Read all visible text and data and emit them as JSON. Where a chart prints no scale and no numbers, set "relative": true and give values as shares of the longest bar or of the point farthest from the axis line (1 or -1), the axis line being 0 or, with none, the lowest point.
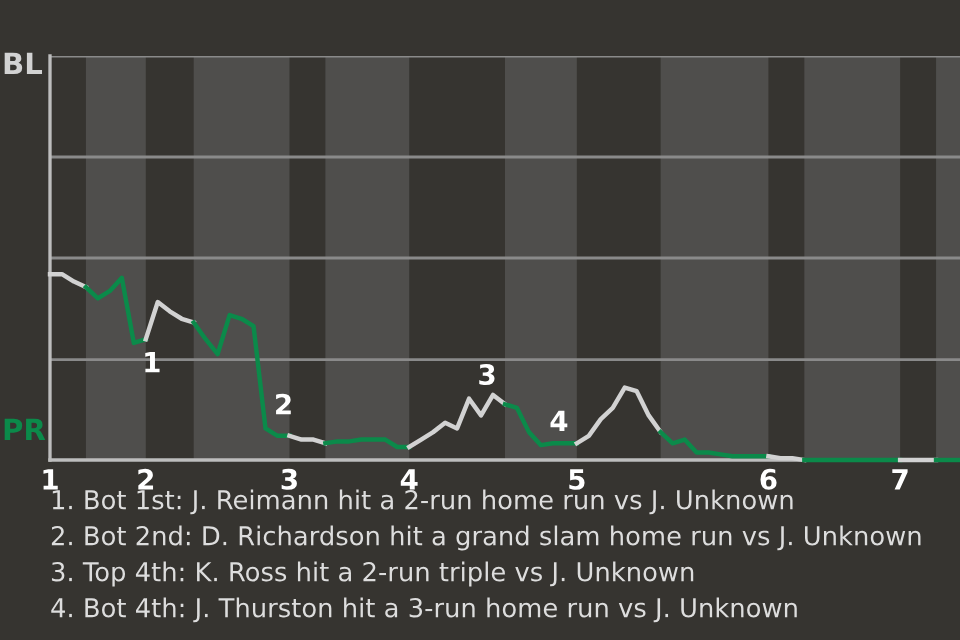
{
  "chart_data": {
    "type": "line",
    "relative": true,
    "categories": [
      "1",
      null,
      null,
      null,
      null,
      null,
      null,
      null,
      "2",
      null,
      null,
      null,
      null,
      null,
      null,
      null,
      null,
      null,
      null,
      null,
      "3",
      null,
      null,
      null,
      null,
      null,
      null,
      null,
      null,
      null,
      "4",
      null,
      null,
      null,
      null,
      null,
      null,
      null,
      null,
      null,
      null,
      null,
      null,
      null,
      "5",
      null,
      null,
      null,
      null,
      null,
      null,
      null,
      null,
      null,
      null,
      null,
      null,
      null,
      null,
      null,
      "6",
      null,
      null,
      null,
      null,
      null,
      null,
      null,
      null,
      null,
      null,
      "7",
      null,
      null,
      null,
      null,
      null
    ],
    "ref_lines": [
      {
        "axis": "y",
        "value": 0.54,
        "color": "#8a8a8a"
      }
    ],
    "marker": "none",
    "line_style": "solid",
    "series": [
      {
        "color": "#d2d2d2",
        "values": [
          1,
          1,
          0.96,
          0.93,
          null,
          null,
          null,
          null,
          null,
          null,
          null,
          null,
          null,
          null,
          null,
          null,
          null,
          null,
          null,
          null,
          null,
          null,
          null,
          null,
          null,
          null,
          null,
          null,
          null,
          null,
          null,
          null,
          null,
          null,
          null,
          null,
          null,
          null,
          null,
          null,
          null,
          null,
          null,
          null,
          null,
          null,
          null,
          null,
          null,
          null,
          null,
          null,
          null,
          null,
          null,
          null,
          null,
          null,
          null,
          null,
          null,
          null,
          null,
          null,
          null,
          null,
          null,
          null,
          null,
          null,
          null,
          null,
          null,
          null,
          null,
          null,
          null
        ]
      },
      {
        "color": "#0b8a4a",
        "values": [
          null,
          null,
          null,
          0.93,
          0.87,
          0.91,
          0.98,
          0.63,
          0.65,
          null,
          null,
          null,
          null,
          null,
          null,
          null,
          null,
          null,
          null,
          null,
          null,
          null,
          null,
          null,
          null,
          null,
          null,
          null,
          null,
          null,
          null,
          null,
          null,
          null,
          null,
          null,
          null,
          null,
          null,
          null,
          null,
          null,
          null,
          null,
          null,
          null,
          null,
          null,
          null,
          null,
          null,
          null,
          null,
          null,
          null,
          null,
          null,
          null,
          null,
          null,
          null,
          null,
          null,
          null,
          null,
          null,
          null,
          null,
          null,
          null,
          null,
          null,
          null,
          null,
          null,
          null,
          null
        ]
      },
      {
        "color": "#d2d2d2",
        "values": [
          null,
          null,
          null,
          null,
          null,
          null,
          null,
          null,
          0.65,
          0.85,
          0.8,
          0.76,
          0.74,
          null,
          null,
          null,
          null,
          null,
          null,
          null,
          null,
          null,
          null,
          null,
          null,
          null,
          null,
          null,
          null,
          null,
          null,
          null,
          null,
          null,
          null,
          null,
          null,
          null,
          null,
          null,
          null,
          null,
          null,
          null,
          null,
          null,
          null,
          null,
          null,
          null,
          null,
          null,
          null,
          null,
          null,
          null,
          null,
          null,
          null,
          null,
          null,
          null,
          null,
          null,
          null,
          null,
          null,
          null,
          null,
          null,
          null,
          null,
          null,
          null,
          null,
          null,
          null
        ]
      },
      {
        "color": "#0b8a4a",
        "values": [
          null,
          null,
          null,
          null,
          null,
          null,
          null,
          null,
          null,
          null,
          null,
          null,
          0.74,
          0.65,
          0.57,
          0.78,
          0.76,
          0.72,
          0.17,
          0.13,
          0.13,
          null,
          null,
          null,
          null,
          null,
          null,
          null,
          null,
          null,
          null,
          null,
          null,
          null,
          null,
          null,
          null,
          null,
          null,
          null,
          null,
          null,
          null,
          null,
          null,
          null,
          null,
          null,
          null,
          null,
          null,
          null,
          null,
          null,
          null,
          null,
          null,
          null,
          null,
          null,
          null,
          null,
          null,
          null,
          null,
          null,
          null,
          null,
          null,
          null,
          null,
          null,
          null,
          null,
          null,
          null,
          null
        ]
      },
      {
        "color": "#d2d2d2",
        "values": [
          null,
          null,
          null,
          null,
          null,
          null,
          null,
          null,
          null,
          null,
          null,
          null,
          null,
          null,
          null,
          null,
          null,
          null,
          null,
          null,
          0.13,
          0.11,
          0.11,
          0.09,
          null,
          null,
          null,
          null,
          null,
          null,
          null,
          null,
          null,
          null,
          null,
          null,
          null,
          null,
          null,
          null,
          null,
          null,
          null,
          null,
          null,
          null,
          null,
          null,
          null,
          null,
          null,
          null,
          null,
          null,
          null,
          null,
          null,
          null,
          null,
          null,
          null,
          null,
          null,
          null,
          null,
          null,
          null,
          null,
          null,
          null,
          null,
          null,
          null,
          null,
          null,
          null,
          null
        ]
      },
      {
        "color": "#0b8a4a",
        "values": [
          null,
          null,
          null,
          null,
          null,
          null,
          null,
          null,
          null,
          null,
          null,
          null,
          null,
          null,
          null,
          null,
          null,
          null,
          null,
          null,
          null,
          null,
          null,
          0.09,
          0.1,
          0.1,
          0.11,
          0.11,
          0.11,
          0.07,
          0.07,
          null,
          null,
          null,
          null,
          null,
          null,
          null,
          null,
          null,
          null,
          null,
          null,
          null,
          null,
          null,
          null,
          null,
          null,
          null,
          null,
          null,
          null,
          null,
          null,
          null,
          null,
          null,
          null,
          null,
          null,
          null,
          null,
          null,
          null,
          null,
          null,
          null,
          null,
          null,
          null,
          null,
          null,
          null,
          null,
          null,
          null
        ]
      },
      {
        "color": "#d2d2d2",
        "values": [
          null,
          null,
          null,
          null,
          null,
          null,
          null,
          null,
          null,
          null,
          null,
          null,
          null,
          null,
          null,
          null,
          null,
          null,
          null,
          null,
          null,
          null,
          null,
          null,
          null,
          null,
          null,
          null,
          null,
          null,
          0.07,
          0.11,
          0.15,
          0.2,
          0.17,
          0.33,
          0.24,
          0.35,
          0.3,
          null,
          null,
          null,
          null,
          null,
          null,
          null,
          null,
          null,
          null,
          null,
          null,
          null,
          null,
          null,
          null,
          null,
          null,
          null,
          null,
          null,
          null,
          null,
          null,
          null,
          null,
          null,
          null,
          null,
          null,
          null,
          null,
          null,
          null,
          null,
          null,
          null,
          null
        ]
      },
      {
        "color": "#0b8a4a",
        "values": [
          null,
          null,
          null,
          null,
          null,
          null,
          null,
          null,
          null,
          null,
          null,
          null,
          null,
          null,
          null,
          null,
          null,
          null,
          null,
          null,
          null,
          null,
          null,
          null,
          null,
          null,
          null,
          null,
          null,
          null,
          null,
          null,
          null,
          null,
          null,
          null,
          null,
          null,
          0.3,
          0.28,
          0.15,
          0.08,
          0.09,
          0.09,
          0.09,
          null,
          null,
          null,
          null,
          null,
          null,
          null,
          null,
          null,
          null,
          null,
          null,
          null,
          null,
          null,
          null,
          null,
          null,
          null,
          null,
          null,
          null,
          null,
          null,
          null,
          null,
          null,
          null,
          null,
          null,
          null,
          null
        ]
      },
      {
        "color": "#d2d2d2",
        "values": [
          null,
          null,
          null,
          null,
          null,
          null,
          null,
          null,
          null,
          null,
          null,
          null,
          null,
          null,
          null,
          null,
          null,
          null,
          null,
          null,
          null,
          null,
          null,
          null,
          null,
          null,
          null,
          null,
          null,
          null,
          null,
          null,
          null,
          null,
          null,
          null,
          null,
          null,
          null,
          null,
          null,
          null,
          null,
          null,
          0.09,
          0.13,
          0.22,
          0.28,
          0.39,
          0.37,
          0.24,
          0.15,
          null,
          null,
          null,
          null,
          null,
          null,
          null,
          null,
          null,
          null,
          null,
          null,
          null,
          null,
          null,
          null,
          null,
          null,
          null,
          null,
          null,
          null,
          null,
          null,
          null
        ]
      },
      {
        "color": "#0b8a4a",
        "values": [
          null,
          null,
          null,
          null,
          null,
          null,
          null,
          null,
          null,
          null,
          null,
          null,
          null,
          null,
          null,
          null,
          null,
          null,
          null,
          null,
          null,
          null,
          null,
          null,
          null,
          null,
          null,
          null,
          null,
          null,
          null,
          null,
          null,
          null,
          null,
          null,
          null,
          null,
          null,
          null,
          null,
          null,
          null,
          null,
          null,
          null,
          null,
          null,
          null,
          null,
          null,
          0.15,
          0.09,
          0.11,
          0.04,
          0.04,
          0.03,
          0.02,
          0.02,
          0.02,
          0.02,
          null,
          null,
          null,
          null,
          null,
          null,
          null,
          null,
          null,
          null,
          null,
          null,
          null,
          null,
          null,
          null
        ]
      },
      {
        "color": "#d2d2d2",
        "values": [
          null,
          null,
          null,
          null,
          null,
          null,
          null,
          null,
          null,
          null,
          null,
          null,
          null,
          null,
          null,
          null,
          null,
          null,
          null,
          null,
          null,
          null,
          null,
          null,
          null,
          null,
          null,
          null,
          null,
          null,
          null,
          null,
          null,
          null,
          null,
          null,
          null,
          null,
          null,
          null,
          null,
          null,
          null,
          null,
          null,
          null,
          null,
          null,
          null,
          null,
          null,
          null,
          null,
          null,
          null,
          null,
          null,
          null,
          null,
          null,
          0.02,
          0.01,
          0.01,
          0,
          null,
          null,
          null,
          null,
          null,
          null,
          null,
          null,
          null,
          null,
          null,
          null,
          null
        ]
      },
      {
        "color": "#0b8a4a",
        "values": [
          null,
          null,
          null,
          null,
          null,
          null,
          null,
          null,
          null,
          null,
          null,
          null,
          null,
          null,
          null,
          null,
          null,
          null,
          null,
          null,
          null,
          null,
          null,
          null,
          null,
          null,
          null,
          null,
          null,
          null,
          null,
          null,
          null,
          null,
          null,
          null,
          null,
          null,
          null,
          null,
          null,
          null,
          null,
          null,
          null,
          null,
          null,
          null,
          null,
          null,
          null,
          null,
          null,
          null,
          null,
          null,
          null,
          null,
          null,
          null,
          null,
          null,
          null,
          0,
          0,
          0,
          0,
          0,
          0,
          0,
          0,
          0,
          null,
          null,
          null,
          null,
          null
        ]
      },
      {
        "color": "#d2d2d2",
        "values": [
          null,
          null,
          null,
          null,
          null,
          null,
          null,
          null,
          null,
          null,
          null,
          null,
          null,
          null,
          null,
          null,
          null,
          null,
          null,
          null,
          null,
          null,
          null,
          null,
          null,
          null,
          null,
          null,
          null,
          null,
          null,
          null,
          null,
          null,
          null,
          null,
          null,
          null,
          null,
          null,
          null,
          null,
          null,
          null,
          null,
          null,
          null,
          null,
          null,
          null,
          null,
          null,
          null,
          null,
          null,
          null,
          null,
          null,
          null,
          null,
          null,
          null,
          null,
          null,
          null,
          null,
          null,
          null,
          null,
          null,
          null,
          0,
          0,
          0,
          0,
          null,
          null
        ]
      },
      {
        "color": "#0b8a4a",
        "values": [
          null,
          null,
          null,
          null,
          null,
          null,
          null,
          null,
          null,
          null,
          null,
          null,
          null,
          null,
          null,
          null,
          null,
          null,
          null,
          null,
          null,
          null,
          null,
          null,
          null,
          null,
          null,
          null,
          null,
          null,
          null,
          null,
          null,
          null,
          null,
          null,
          null,
          null,
          null,
          null,
          null,
          null,
          null,
          null,
          null,
          null,
          null,
          null,
          null,
          null,
          null,
          null,
          null,
          null,
          null,
          null,
          null,
          null,
          null,
          null,
          null,
          null,
          null,
          null,
          null,
          null,
          null,
          null,
          null,
          null,
          null,
          null,
          null,
          null,
          0,
          0,
          0
        ]
      }
    ],
    "annotations": [
      "BL",
      "PR",
      {
        "text": "1",
        "y": 0.63
      },
      {
        "text": "2",
        "y": 0.17
      },
      {
        "text": "3",
        "y": 0.33
      },
      {
        "text": "4",
        "y": 0.08
      },
      "1. Bot 1st: J. Reimann hit a 2-run home run vs J. Unknown",
      "2. Bot 2nd: D. Richardson hit a grand slam home run vs J. Unknown",
      "3. Top 4th: K. Ross hit a 2-run triple vs J. Unknown",
      "4. Bot 4th: J. Thurston hit a 3-run home run vs J. Unknown"
    ]
  }
}
